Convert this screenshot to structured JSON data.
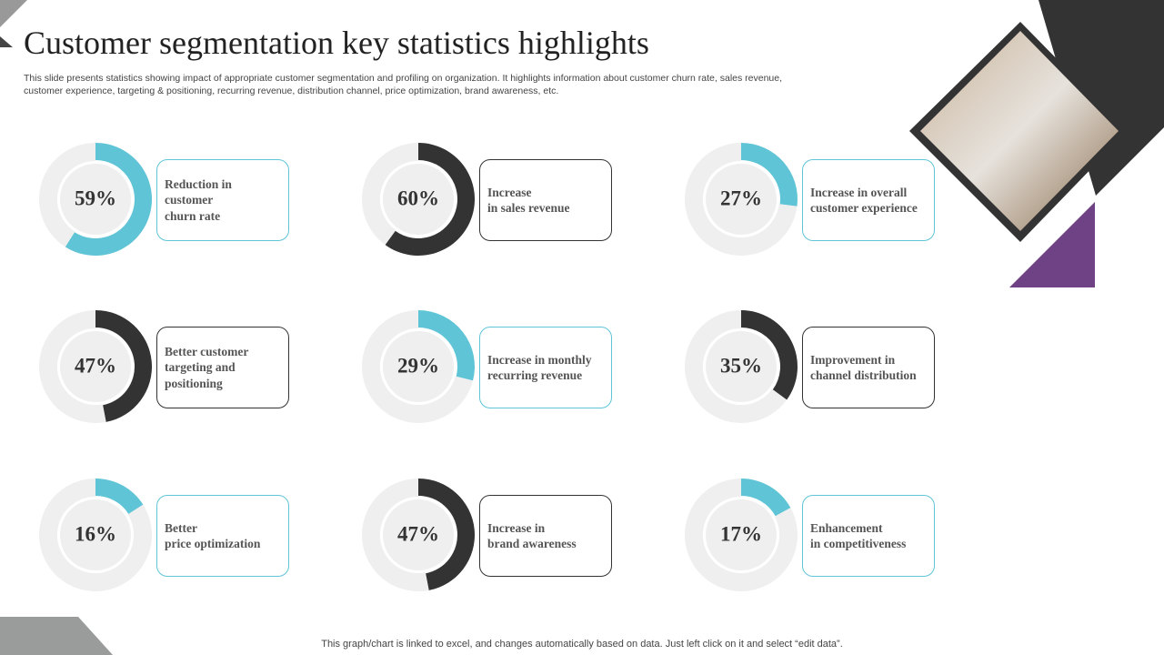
{
  "header": {
    "title": "Customer segmentation key statistics highlights",
    "subtitle": "This slide presents statistics showing impact of appropriate customer segmentation and profiling on organization. It highlights information about customer churn rate, sales revenue,\ncustomer experience, targeting & positioning, recurring revenue, distribution channel, price optimization, brand awareness, etc."
  },
  "chart_data": [
    {
      "type": "donut",
      "title": "Reduction in\ncustomer\nchurn rate",
      "values": [
        59,
        41
      ],
      "value_labels": [
        "59%",
        null
      ],
      "colors": [
        "#5ec4d6",
        "#efefef"
      ]
    },
    {
      "type": "donut",
      "title": "Increase\nin sales revenue",
      "values": [
        60,
        40
      ],
      "value_labels": [
        "60%",
        null
      ],
      "colors": [
        "#333333",
        "#efefef"
      ]
    },
    {
      "type": "donut",
      "title": "Increase in overall\ncustomer experience",
      "values": [
        27,
        73
      ],
      "value_labels": [
        "27%",
        null
      ],
      "colors": [
        "#5ec4d6",
        "#efefef"
      ]
    },
    {
      "type": "donut",
      "title": "Better customer\ntargeting and\npositioning",
      "values": [
        47,
        53
      ],
      "value_labels": [
        "47%",
        null
      ],
      "colors": [
        "#333333",
        "#efefef"
      ]
    },
    {
      "type": "donut",
      "title": "Increase in monthly\nrecurring revenue",
      "values": [
        29,
        71
      ],
      "value_labels": [
        "29%",
        null
      ],
      "colors": [
        "#5ec4d6",
        "#efefef"
      ]
    },
    {
      "type": "donut",
      "title": "Improvement in\nchannel distribution",
      "values": [
        35,
        65
      ],
      "value_labels": [
        "35%",
        null
      ],
      "colors": [
        "#333333",
        "#efefef"
      ]
    },
    {
      "type": "donut",
      "title": "Better\nprice optimization",
      "values": [
        16,
        84
      ],
      "value_labels": [
        "16%",
        null
      ],
      "colors": [
        "#5ec4d6",
        "#efefef"
      ]
    },
    {
      "type": "donut",
      "title": "Increase in\nbrand awareness",
      "values": [
        47,
        53
      ],
      "value_labels": [
        "47%",
        null
      ],
      "colors": [
        "#333333",
        "#efefef"
      ]
    },
    {
      "type": "donut",
      "title": "Enhancement\nin competitiveness",
      "values": [
        17,
        83
      ],
      "value_labels": [
        "17%",
        null
      ],
      "colors": [
        "#5ec4d6",
        "#efefef"
      ]
    }
  ],
  "footer": "This graph/chart is linked to excel,  and changes automatically based on data. Just left click on it and select “edit data”."
}
